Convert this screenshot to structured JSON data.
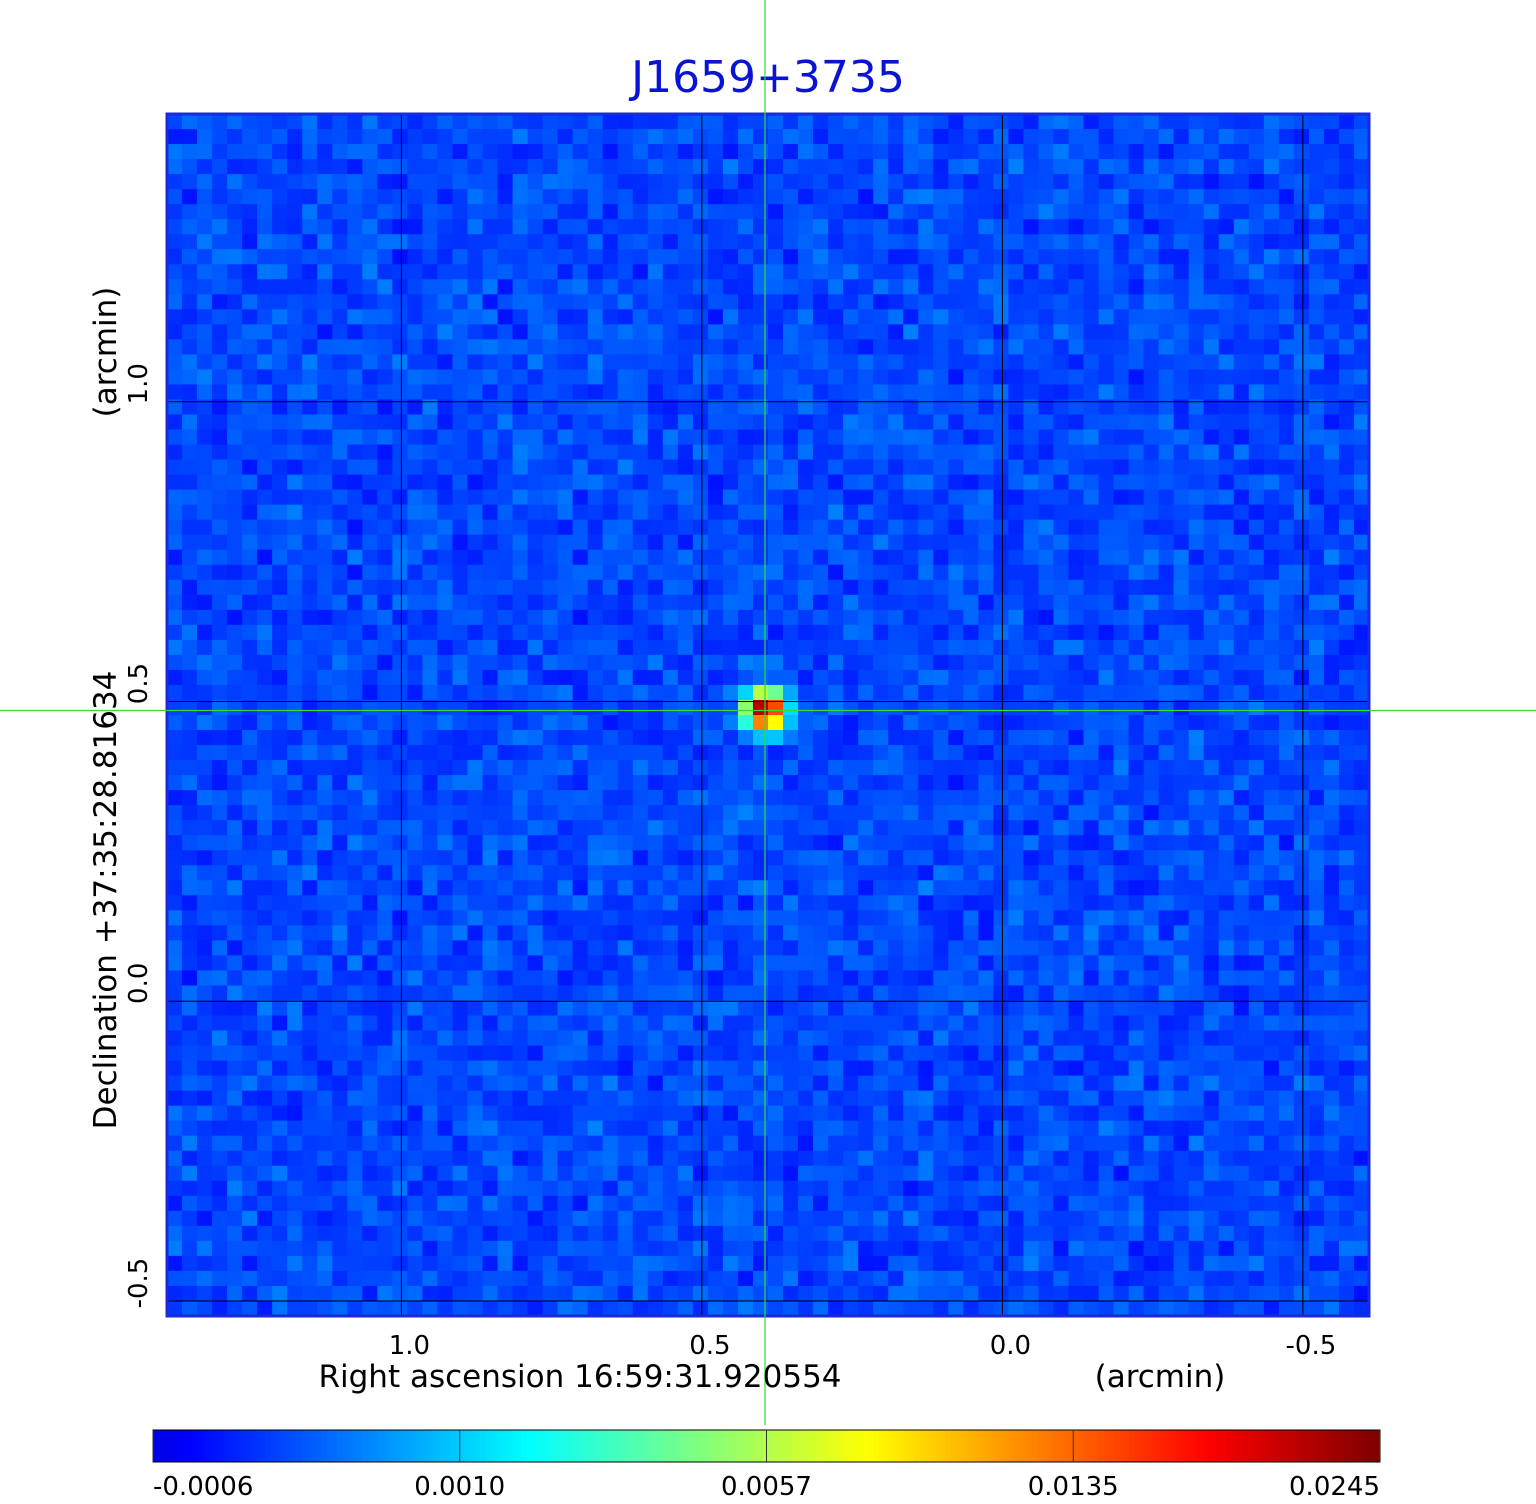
{
  "chart_data": {
    "type": "heatmap",
    "title": "J1659+3735",
    "xlabel": "Right ascension  16:59:31.920554",
    "xunit": "(arcmin)",
    "ylabel": "Declination  +37:35:28.81634",
    "yunit": "(arcmin)",
    "x_ticks": [
      1.0,
      0.5,
      0.0,
      -0.5
    ],
    "x_tick_labels": [
      "1.0",
      "0.5",
      "0.0",
      "-0.5"
    ],
    "y_ticks": [
      1.0,
      0.5,
      0.0,
      -0.5
    ],
    "y_tick_labels": [
      "1.0",
      "0.5",
      "0.0",
      "-0.5"
    ],
    "xlim": [
      1.39,
      -0.61
    ],
    "ylim": [
      -0.525,
      1.48
    ],
    "grid": true,
    "crosshair": {
      "x": 0.395,
      "y": 0.485
    },
    "source_peak": {
      "x": 0.395,
      "y": 0.485,
      "value": 0.0245
    },
    "noise_range": [
      -0.0006,
      0.001
    ],
    "colorbar": {
      "tick_labels": [
        "-0.0006",
        "0.0010",
        "0.0057",
        "0.0135",
        "0.0245"
      ],
      "ticks": [
        -0.0006,
        0.001,
        0.0057,
        0.0135,
        0.0245
      ],
      "colormap": "jet"
    }
  },
  "colors": {
    "title": "#0a12d6",
    "crosshair": "#33dd33",
    "grid": "#000000",
    "frame": "#1a2ad8"
  }
}
